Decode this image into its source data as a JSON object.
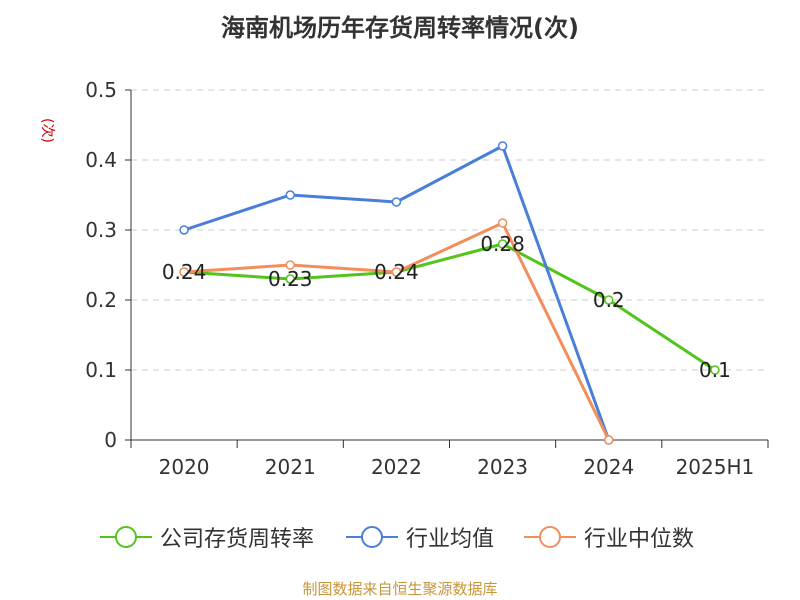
{
  "chart_data": {
    "type": "line",
    "title": "海南机场历年存货周转率情况(次)",
    "ylabel": "(次)",
    "categories": [
      "2020",
      "2021",
      "2022",
      "2023",
      "2024",
      "2025H1"
    ],
    "ylim": [
      0,
      0.5
    ],
    "yticks": [
      "0",
      "0.1",
      "0.2",
      "0.3",
      "0.4",
      "0.5"
    ],
    "grid": true,
    "legend_position": "bottom",
    "series": [
      {
        "name": "公司存货周转率",
        "color": "#52c41a",
        "values": [
          0.24,
          0.23,
          0.24,
          0.28,
          0.2,
          0.1
        ],
        "labels": [
          "0.24",
          "0.23",
          "0.24",
          "0.28",
          "0.2",
          "0.1"
        ]
      },
      {
        "name": "行业均值",
        "color": "#4a7fd8",
        "values": [
          0.3,
          0.35,
          0.34,
          0.42,
          0,
          null
        ]
      },
      {
        "name": "行业中位数",
        "color": "#f28e5b",
        "values": [
          0.24,
          0.25,
          0.24,
          0.31,
          0,
          null
        ]
      }
    ]
  },
  "source": "制图数据来自恒生聚源数据库"
}
